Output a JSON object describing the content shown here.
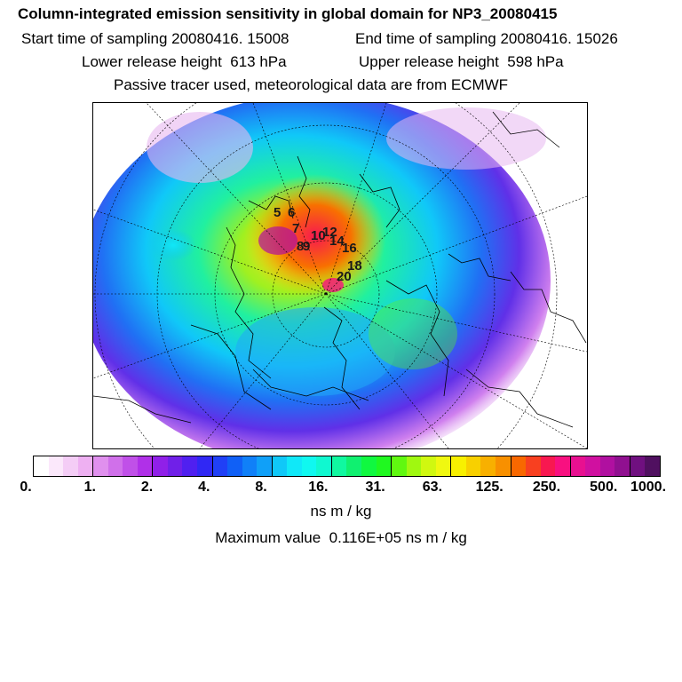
{
  "header": {
    "title": "Column-integrated emission sensitivity in global domain for NP3_20080415",
    "start_time": "Start time of sampling 20080416. 15008",
    "end_time": "End time of sampling 20080416. 15026",
    "lower_release": "Lower release height  613 hPa",
    "upper_release": "Upper release height  598 hPa",
    "tracer_note": "Passive tracer used, meteorological data are from ECMWF"
  },
  "map": {
    "projection": "north-polar-stereographic",
    "release_labels": [
      "5",
      "6",
      "7",
      "10",
      "12",
      "14",
      "16",
      "18",
      "20",
      "9",
      "8"
    ]
  },
  "colorbar": {
    "colors": [
      "#ffffff",
      "#fbe8fb",
      "#f4cdf6",
      "#eeb0f2",
      "#e090ee",
      "#d070ea",
      "#c050e8",
      "#b030e8",
      "#9020e8",
      "#7020e8",
      "#5020f0",
      "#3028f4",
      "#2040f6",
      "#1060f6",
      "#1080f8",
      "#10a0f8",
      "#10c8f8",
      "#10e8f8",
      "#10f8f0",
      "#10f8d0",
      "#10f8a0",
      "#10f070",
      "#10f840",
      "#20f820",
      "#60f810",
      "#a0f810",
      "#d0f810",
      "#f0f810",
      "#f8f000",
      "#f8d000",
      "#f8b000",
      "#f89000",
      "#f86800",
      "#f84020",
      "#f81850",
      "#f81080",
      "#e81090",
      "#d010a0",
      "#b010a0",
      "#901090",
      "#701080",
      "#501060"
    ],
    "ticks": [
      "0.",
      "1.",
      "2.",
      "4.",
      "8.",
      "16.",
      "31.",
      "63.",
      "125.",
      "250.",
      "500.",
      "1000."
    ],
    "units": "ns m / kg"
  },
  "max_value": "Maximum value  0.116E+05 ns m / kg"
}
